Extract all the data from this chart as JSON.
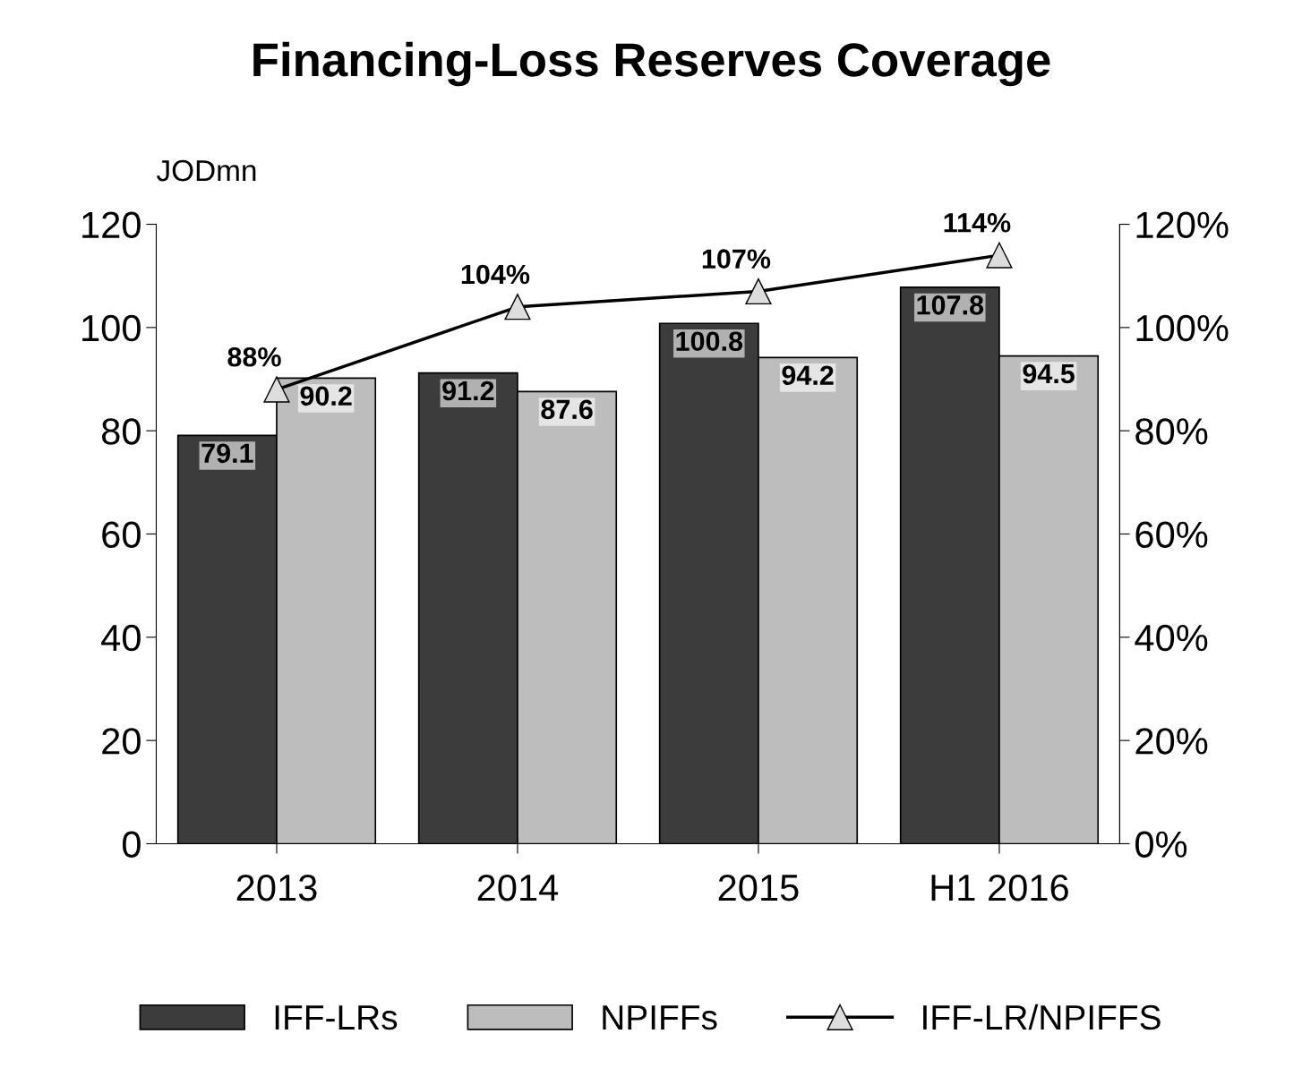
{
  "chart_data": {
    "type": "bar",
    "title": "Financing-Loss Reserves Coverage",
    "ylabel": "JODmn",
    "categories": [
      "2013",
      "2014",
      "2015",
      "H1 2016"
    ],
    "series": [
      {
        "name": "IFF-LRs",
        "color": "#3c3c3c",
        "values": [
          79.1,
          91.2,
          100.8,
          107.8
        ],
        "value_labels": [
          "79.1",
          "91.2",
          "100.8",
          "107.8"
        ]
      },
      {
        "name": "NPIFFs",
        "color": "#bdbdbd",
        "values": [
          90.2,
          87.6,
          94.2,
          94.5
        ],
        "value_labels": [
          "90.2",
          "87.6",
          "94.2",
          "94.5"
        ]
      },
      {
        "name": "IFF-LR/NPIFFS",
        "type": "line",
        "color": "#000000",
        "marker": "triangle",
        "values": [
          88,
          104,
          107,
          114
        ],
        "value_labels": [
          "88%",
          "104%",
          "107%",
          "114%"
        ]
      }
    ],
    "ylim": [
      0,
      120
    ],
    "yticks": [
      0,
      20,
      40,
      60,
      80,
      100,
      120
    ],
    "y2lim": [
      0,
      120
    ],
    "y2ticks": [
      {
        "value": 0,
        "label": "0%"
      },
      {
        "value": 20,
        "label": "20%"
      },
      {
        "value": 40,
        "label": "40%"
      },
      {
        "value": 60,
        "label": "60%"
      },
      {
        "value": 80,
        "label": "80%"
      },
      {
        "value": 100,
        "label": "100%"
      },
      {
        "value": 120,
        "label": "120%"
      }
    ],
    "legend": "bottom",
    "grid": false
  }
}
